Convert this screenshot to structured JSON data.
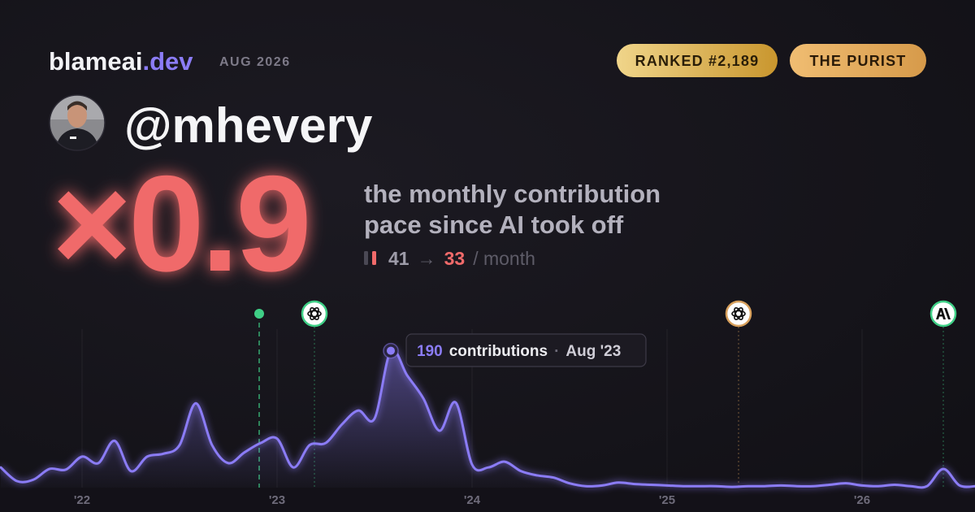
{
  "header": {
    "brand": "blameai",
    "tld": ".dev",
    "date": "AUG 2026",
    "badges": [
      "RANKED #2,189",
      "THE PURIST"
    ]
  },
  "user": {
    "handle": "@mhevery"
  },
  "metric": {
    "multiplier": "×0.9",
    "description": [
      "the monthly contribution",
      "pace since AI took off"
    ],
    "before": 41,
    "arrow": "→",
    "after": 33,
    "unit": "/ month"
  },
  "chart_data": {
    "type": "line",
    "categories": [
      null,
      null,
      null,
      null,
      null,
      "'22",
      null,
      null,
      null,
      null,
      null,
      null,
      null,
      null,
      null,
      null,
      null,
      "'23",
      null,
      null,
      null,
      null,
      null,
      null,
      null,
      null,
      null,
      null,
      null,
      "'24",
      null,
      null,
      null,
      null,
      null,
      null,
      null,
      null,
      null,
      null,
      null,
      "'25",
      null,
      null,
      null,
      null,
      null,
      null,
      null,
      null,
      null,
      null,
      null,
      "'26",
      null,
      null,
      null,
      null,
      null,
      null,
      null
    ],
    "values": [
      28,
      9,
      11,
      26,
      25,
      43,
      34,
      65,
      23,
      43,
      47,
      59,
      117,
      59,
      34,
      49,
      62,
      68,
      28,
      59,
      62,
      88,
      107,
      96,
      190,
      156,
      124,
      79,
      118,
      32,
      28,
      36,
      23,
      17,
      14,
      6,
      2,
      3,
      7,
      5,
      4,
      3,
      2,
      2,
      2,
      1,
      2,
      2,
      3,
      2,
      2,
      4,
      6,
      3,
      2,
      4,
      2,
      2,
      26,
      3,
      2
    ],
    "color": "#8b7cf6",
    "ylim": [
      0,
      220
    ],
    "tooltip": {
      "unit": "contributions",
      "separator": "·",
      "date": "Aug '23"
    }
  }
}
